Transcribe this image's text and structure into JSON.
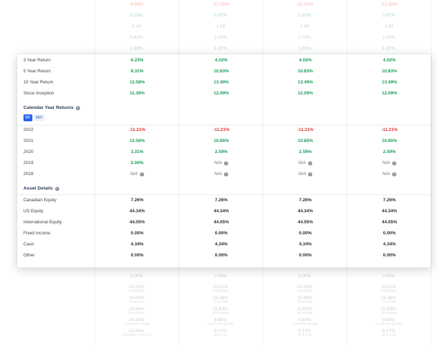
{
  "background_rows_top": [
    {
      "values": [
        "-9.84%",
        "-12.32%",
        "-12.32%",
        "-12.32%"
      ],
      "kind": "neg"
    },
    {
      "values": [
        "6.23%",
        "5.87%",
        "5.87%",
        "5.87%"
      ],
      "kind": "pos"
    },
    {
      "values": [
        "1.24",
        "1.43",
        "1.43",
        "1.43"
      ],
      "kind": "plain"
    },
    {
      "values": [
        "2.41%",
        "2.03%",
        "2.03%",
        "2.03%"
      ],
      "kind": "plain"
    },
    {
      "values": [
        "1.33%",
        "1.01%",
        "1.01%",
        "1.01%"
      ],
      "kind": "pos"
    }
  ],
  "background_rows_bottom": [
    {
      "values": [
        {
          "v": "0.00%",
          "s": ""
        },
        {
          "v": "0.00%",
          "s": ""
        },
        {
          "v": "0.00%",
          "s": ""
        },
        {
          "v": "0.00%",
          "s": ""
        }
      ]
    },
    {
      "values": [
        {
          "v": "19.10%",
          "s": "Industrials"
        },
        {
          "v": "22.62%",
          "s": "Industrials"
        },
        {
          "v": "22.62%",
          "s": "Industrials"
        },
        {
          "v": "22.62%",
          "s": "Industrials"
        }
      ]
    },
    {
      "values": [
        {
          "v": "16.80%",
          "s": "Financials"
        },
        {
          "v": "15.49%",
          "s": "Financials"
        },
        {
          "v": "15.49%",
          "s": "Financials"
        },
        {
          "v": "15.49%",
          "s": "Financials"
        }
      ]
    },
    {
      "values": [
        {
          "v": "15.68%",
          "s": "Technology"
        },
        {
          "v": "11.63%",
          "s": "Technology"
        },
        {
          "v": "11.63%",
          "s": "Technology"
        },
        {
          "v": "11.63%",
          "s": "Technology"
        }
      ]
    },
    {
      "values": [
        {
          "v": "14.32%",
          "s": "Consumer Goods"
        },
        {
          "v": "9.80%",
          "s": "Consumer Goods"
        },
        {
          "v": "9.80%",
          "s": "Consumer Goods"
        },
        {
          "v": "9.80%",
          "s": "Consumer Goods"
        }
      ]
    },
    {
      "values": [
        {
          "v": "12.83%",
          "s": "Consumer Services"
        },
        {
          "v": "9.17%",
          "s": "Oil & Gas"
        },
        {
          "v": "9.17%",
          "s": "Oil & Gas"
        },
        {
          "v": "9.17%",
          "s": "Oil & Gas"
        }
      ]
    }
  ],
  "returns": [
    {
      "label": "3 Year Return",
      "values": [
        "6.23%",
        "4.02%",
        "4.02%",
        "4.02%"
      ]
    },
    {
      "label": "5 Year Return",
      "values": [
        "8.31%",
        "10.83%",
        "10.83%",
        "10.83%"
      ]
    },
    {
      "label": "10 Year Return",
      "values": [
        "12.58%",
        "13.49%",
        "13.49%",
        "13.49%"
      ]
    },
    {
      "label": "Since Inception",
      "values": [
        "11.39%",
        "12.09%",
        "12.09%",
        "12.09%"
      ]
    }
  ],
  "calendar": {
    "title": "Calendar Year Returns",
    "toggle": [
      "5Y",
      "10Y"
    ],
    "rows": [
      {
        "label": "2022",
        "values": [
          "-11.21%",
          "-11.21%",
          "-11.21%",
          "-11.21%"
        ]
      },
      {
        "label": "2021",
        "values": [
          "12.56%",
          "10.85%",
          "10.85%",
          "10.85%"
        ]
      },
      {
        "label": "2020",
        "values": [
          "3.31%",
          "2.59%",
          "2.59%",
          "2.59%"
        ]
      },
      {
        "label": "2019",
        "values": [
          "2.00%",
          "N/A",
          "N/A",
          "N/A"
        ]
      },
      {
        "label": "2018",
        "values": [
          "N/A",
          "N/A",
          "N/A",
          "N/A"
        ]
      }
    ]
  },
  "assets": {
    "title": "Asset Details",
    "rows": [
      {
        "label": "Canadian Equity",
        "values": [
          "7.26%",
          "7.26%",
          "7.26%",
          "7.26%"
        ]
      },
      {
        "label": "US Equity",
        "values": [
          "44.34%",
          "44.34%",
          "44.34%",
          "44.34%"
        ]
      },
      {
        "label": "International Equity",
        "values": [
          "44.05%",
          "44.05%",
          "44.05%",
          "44.05%"
        ]
      },
      {
        "label": "Fixed Income",
        "values": [
          "0.00%",
          "0.00%",
          "0.00%",
          "0.00%"
        ]
      },
      {
        "label": "Cash",
        "values": [
          "4.34%",
          "4.34%",
          "4.34%",
          "4.34%"
        ]
      },
      {
        "label": "Other",
        "values": [
          "0.00%",
          "0.00%",
          "0.00%",
          "0.00%"
        ]
      }
    ]
  },
  "colors": {
    "positive": "#1f9a5a",
    "negative": "#d93a32",
    "accent": "#2563eb"
  },
  "icons": {
    "info": "info-circle-icon"
  }
}
